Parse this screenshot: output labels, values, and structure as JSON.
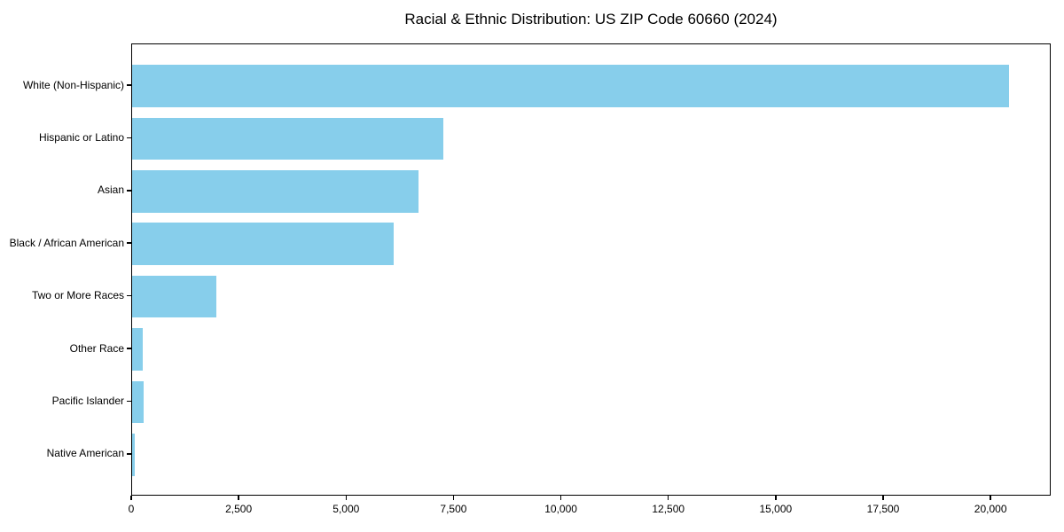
{
  "title": "Racial & Ethnic Distribution: US ZIP Code 60660 (2024)",
  "chart_data": {
    "type": "bar",
    "orientation": "horizontal",
    "title": "Racial & Ethnic Distribution: US ZIP Code 60660 (2024)",
    "xlabel": "",
    "ylabel": "",
    "categories": [
      "White (Non-Hispanic)",
      "Hispanic or Latino",
      "Asian",
      "Black / African American",
      "Two or More Races",
      "Other Race",
      "Pacific Islander",
      "Native American"
    ],
    "values": [
      20400,
      7250,
      6660,
      6090,
      1960,
      240,
      260,
      60
    ],
    "xlim": [
      0,
      21400
    ],
    "x_ticks": [
      {
        "value": 0,
        "label": "0"
      },
      {
        "value": 2500,
        "label": "2,500"
      },
      {
        "value": 5000,
        "label": "5,000"
      },
      {
        "value": 7500,
        "label": "7,500"
      },
      {
        "value": 10000,
        "label": "10,000"
      },
      {
        "value": 12500,
        "label": "12,500"
      },
      {
        "value": 15000,
        "label": "15,000"
      },
      {
        "value": 17500,
        "label": "17,500"
      },
      {
        "value": 20000,
        "label": "20,000"
      }
    ],
    "bar_color": "#87CEEB",
    "axis_color": "#000000",
    "grid": false,
    "legend": null
  }
}
